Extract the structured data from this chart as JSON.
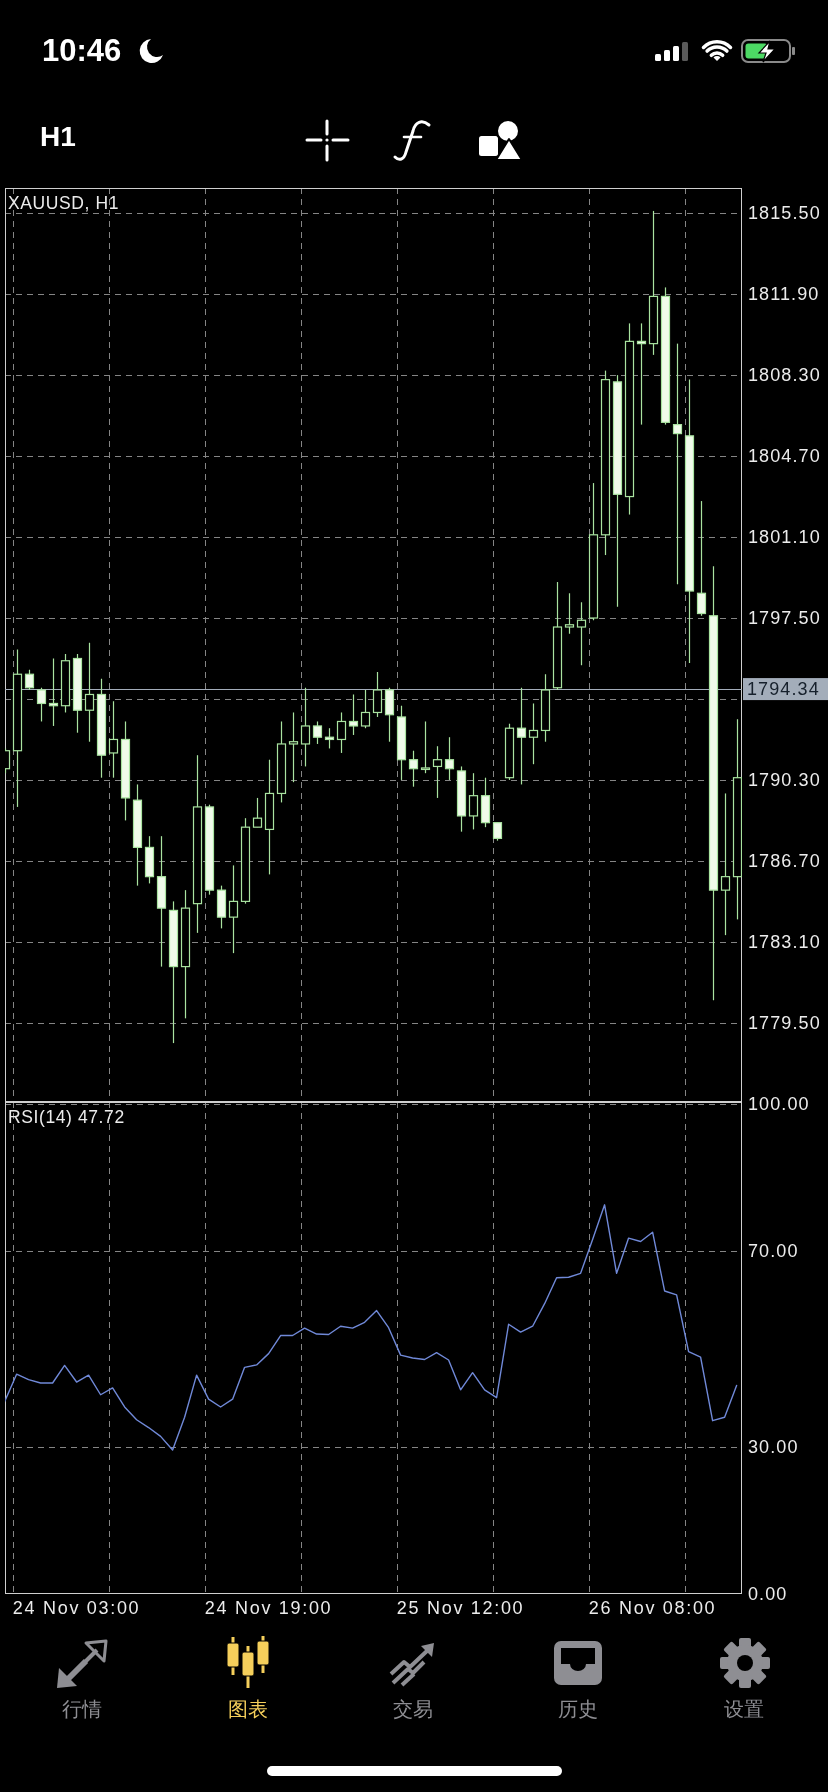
{
  "chart_data": [
    {
      "type": "candlestick",
      "title": "XAUUSD, H1",
      "categories": [
        null,
        null,
        null,
        null,
        null,
        null,
        "24 Nov 03:00",
        null,
        null,
        null,
        null,
        null,
        null,
        null,
        null,
        null,
        null,
        null,
        null,
        null,
        null,
        null,
        "24 Nov 19:00",
        null,
        null,
        null,
        null,
        null,
        null,
        null,
        null,
        null,
        null,
        null,
        null,
        null,
        null,
        null,
        "25 Nov 12:00",
        null,
        null,
        null,
        null,
        null,
        null,
        null,
        null,
        null,
        null,
        null,
        null,
        null,
        null,
        null,
        "26 Nov 08:00",
        null,
        null,
        null,
        null,
        null,
        null,
        null
      ],
      "ohlc": [
        [
          1790.8,
          1791.7,
          1790.6,
          1791.6
        ],
        [
          1791.6,
          1796.1,
          1789.1,
          1795.0
        ],
        [
          1795.0,
          1795.2,
          1794.3,
          1794.4
        ],
        [
          1794.3,
          1794.4,
          1792.9,
          1793.7
        ],
        [
          1793.7,
          1795.7,
          1792.7,
          1793.6
        ],
        [
          1793.6,
          1795.9,
          1793.3,
          1795.6
        ],
        [
          1795.7,
          1795.9,
          1792.4,
          1793.4
        ],
        [
          1793.4,
          1796.4,
          1792.0,
          1794.1
        ],
        [
          1794.1,
          1794.8,
          1790.4,
          1791.4
        ],
        [
          1791.5,
          1793.8,
          1790.4,
          1792.1
        ],
        [
          1792.1,
          1792.9,
          1788.5,
          1789.5
        ],
        [
          1789.4,
          1790.1,
          1785.6,
          1787.3
        ],
        [
          1787.3,
          1787.8,
          1785.7,
          1786.0
        ],
        [
          1786.0,
          1787.8,
          1782.0,
          1784.6
        ],
        [
          1784.5,
          1784.9,
          1778.6,
          1782.0
        ],
        [
          1782.0,
          1785.4,
          1779.7,
          1784.6
        ],
        [
          1784.8,
          1791.4,
          1783.5,
          1789.1
        ],
        [
          1789.1,
          1789.2,
          1785.2,
          1785.4
        ],
        [
          1785.4,
          1785.6,
          1783.7,
          1784.2
        ],
        [
          1784.2,
          1786.5,
          1782.6,
          1784.9
        ],
        [
          1784.9,
          1788.6,
          1784.8,
          1788.2
        ],
        [
          1788.2,
          1789.5,
          1788.2,
          1788.6
        ],
        [
          1788.1,
          1791.2,
          1786.1,
          1789.7
        ],
        [
          1789.7,
          1792.9,
          1789.3,
          1791.9
        ],
        [
          1791.9,
          1793.3,
          1790.2,
          1792.0
        ],
        [
          1791.9,
          1794.4,
          1790.9,
          1792.7
        ],
        [
          1792.7,
          1792.9,
          1791.9,
          1792.2
        ],
        [
          1792.2,
          1792.6,
          1791.7,
          1792.1
        ],
        [
          1792.1,
          1793.3,
          1791.5,
          1792.9
        ],
        [
          1792.9,
          1794.1,
          1792.3,
          1792.7
        ],
        [
          1792.7,
          1794.3,
          1792.6,
          1793.3
        ],
        [
          1793.3,
          1795.1,
          1793.1,
          1794.3
        ],
        [
          1794.3,
          1794.4,
          1792.0,
          1793.2
        ],
        [
          1793.1,
          1793.6,
          1790.3,
          1791.2
        ],
        [
          1791.2,
          1791.6,
          1790.0,
          1790.8
        ],
        [
          1790.8,
          1792.9,
          1790.6,
          1790.8
        ],
        [
          1790.9,
          1791.8,
          1789.5,
          1791.2
        ],
        [
          1791.2,
          1792.2,
          1790.3,
          1790.8
        ],
        [
          1790.7,
          1790.9,
          1788.0,
          1788.7
        ],
        [
          1788.7,
          1790.6,
          1788.1,
          1789.6
        ],
        [
          1789.6,
          1790.4,
          1788.2,
          1788.4
        ],
        [
          1788.4,
          1788.4,
          1787.6,
          1787.7
        ],
        [
          1790.4,
          1792.8,
          1790.3,
          1792.6
        ],
        [
          1792.6,
          1794.4,
          1790.1,
          1792.2
        ],
        [
          1792.2,
          1793.7,
          1791.0,
          1792.5
        ],
        [
          1792.5,
          1795.0,
          1792.0,
          1794.3
        ],
        [
          1794.4,
          1799.1,
          1794.3,
          1797.1
        ],
        [
          1797.1,
          1798.6,
          1796.8,
          1797.2
        ],
        [
          1797.1,
          1798.2,
          1795.4,
          1797.4
        ],
        [
          1797.5,
          1803.5,
          1797.4,
          1801.2
        ],
        [
          1801.2,
          1808.5,
          1800.3,
          1808.1
        ],
        [
          1808.0,
          1808.3,
          1798.0,
          1803.0
        ],
        [
          1802.9,
          1810.6,
          1802.1,
          1809.8
        ],
        [
          1809.8,
          1810.6,
          1806.1,
          1809.7
        ],
        [
          1809.7,
          1815.6,
          1809.2,
          1811.8
        ],
        [
          1811.8,
          1812.2,
          1806.1,
          1806.2
        ],
        [
          1806.1,
          1809.7,
          1799.0,
          1805.7
        ],
        [
          1805.6,
          1808.1,
          1795.5,
          1798.7
        ],
        [
          1798.6,
          1802.7,
          1797.6,
          1797.7
        ],
        [
          1797.6,
          1799.8,
          1780.5,
          1785.4
        ],
        [
          1785.4,
          1789.7,
          1783.4,
          1786.0
        ],
        [
          1786.0,
          1793.0,
          1784.1,
          1790.4
        ]
      ],
      "color": "#a9e3a0",
      "colors": [
        "#000000",
        "#000000",
        "#f0fbea",
        "#f0fbea",
        "#f0fbea",
        "#000000",
        "#f0fbea",
        "#000000",
        "#f0fbea",
        "#000000",
        "#f0fbea",
        "#f0fbea",
        "#f0fbea",
        "#f0fbea",
        "#f0fbea",
        "#000000",
        "#000000",
        "#f0fbea",
        "#f0fbea",
        "#000000",
        "#000000",
        "#000000",
        "#000000",
        "#000000",
        "#000000",
        "#000000",
        "#f0fbea",
        "#f0fbea",
        "#000000",
        "#f0fbea",
        "#000000",
        "#000000",
        "#f0fbea",
        "#f0fbea",
        "#f0fbea",
        "#000000",
        "#000000",
        "#f0fbea",
        "#f0fbea",
        "#000000",
        "#f0fbea",
        "#f0fbea",
        "#000000",
        "#f0fbea",
        "#000000",
        "#000000",
        "#000000",
        "#000000",
        "#000000",
        "#000000",
        "#000000",
        "#f0fbea",
        "#000000",
        "#f0fbea",
        "#000000",
        "#f0fbea",
        "#f0fbea",
        "#f0fbea",
        "#f0fbea",
        "#f0fbea",
        "#000000",
        "#000000"
      ],
      "ylim": [
        1775.98,
        1816.62
      ],
      "yticks": [
        {
          "value": 1815.5,
          "label": "1815.50"
        },
        {
          "value": 1811.9,
          "label": "1811.90"
        },
        {
          "value": 1808.3,
          "label": "1808.30"
        },
        {
          "value": 1804.7,
          "label": "1804.70"
        },
        {
          "value": 1801.1,
          "label": "1801.10"
        },
        {
          "value": 1797.5,
          "label": "1797.50"
        },
        {
          "value": 1793.9,
          "label": null
        },
        {
          "value": 1790.3,
          "label": "1790.30"
        },
        {
          "value": 1786.7,
          "label": "1786.70"
        },
        {
          "value": 1783.1,
          "label": "1783.10"
        },
        {
          "value": 1779.5,
          "label": "1779.50"
        }
      ],
      "ref_lines": [
        {
          "axis": "y",
          "value": 1794.34,
          "label": "1794.34",
          "color": "#a3adba"
        }
      ],
      "grid": true,
      "tick_labels": "y",
      "annotations": [
        "10:46",
        "H1",
        "行情",
        "图表",
        "交易",
        "历史",
        "设置"
      ]
    },
    {
      "type": "line",
      "title": "RSI(14) 47.72",
      "categories": [
        null,
        null,
        null,
        null,
        null,
        null,
        "24 Nov 03:00",
        null,
        null,
        null,
        null,
        null,
        null,
        null,
        null,
        null,
        null,
        null,
        null,
        null,
        null,
        null,
        "24 Nov 19:00",
        null,
        null,
        null,
        null,
        null,
        null,
        null,
        null,
        null,
        null,
        null,
        null,
        null,
        null,
        null,
        "25 Nov 12:00",
        null,
        null,
        null,
        null,
        null,
        null,
        null,
        null,
        null,
        null,
        null,
        null,
        null,
        null,
        null,
        "26 Nov 08:00",
        null,
        null,
        null,
        null,
        null,
        null,
        null
      ],
      "values": [
        39.2,
        44.8,
        43.7,
        43.0,
        43.0,
        46.6,
        43.2,
        44.6,
        40.6,
        42.0,
        38.1,
        35.5,
        33.9,
        32.1,
        29.3,
        36.0,
        44.6,
        39.7,
        38.1,
        39.7,
        46.2,
        46.7,
        49.0,
        52.7,
        52.7,
        54.2,
        53.0,
        52.9,
        54.6,
        54.2,
        55.4,
        57.8,
        54.3,
        48.7,
        48.1,
        47.8,
        49.2,
        47.7,
        41.6,
        45.1,
        41.6,
        40.0,
        55.0,
        53.4,
        54.6,
        59.2,
        64.5,
        64.6,
        65.4,
        72.3,
        79.4,
        65.4,
        72.6,
        71.9,
        73.8,
        61.8,
        61.0,
        49.4,
        48.3,
        35.3,
        36.0,
        42.5
      ],
      "color": "#7089d8",
      "ylim": [
        -0.1,
        100.4
      ],
      "yticks": [
        {
          "value": 100,
          "label": "100.00"
        },
        {
          "value": 70,
          "label": "70.00"
        },
        {
          "value": 30,
          "label": "30.00"
        },
        {
          "value": 0,
          "label": "0.00"
        }
      ],
      "grid": true
    }
  ]
}
